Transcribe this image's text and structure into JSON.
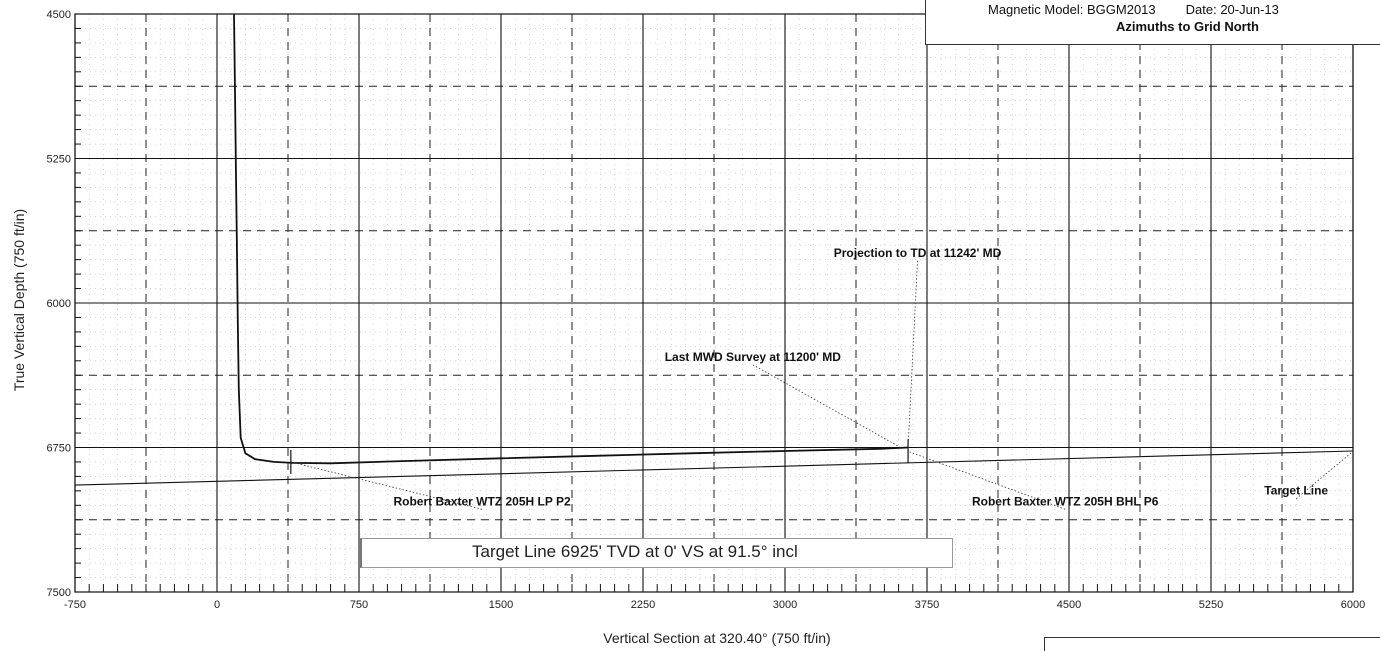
{
  "header": {
    "magnetic_model": "Magnetic Model:  BGGM2013",
    "date": "Date:  20-Jun-13",
    "azimuths": "Azimuths to Grid North"
  },
  "legend_box": {
    "text": "Target Line 6925' TVD at 0' VS at 91.5° incl"
  },
  "chart_data": {
    "type": "line",
    "xlabel": "Vertical Section at 320.40° (750 ft/in)",
    "ylabel": "True Vertical Depth (750 ft/in)",
    "xlim": [
      -750,
      6000
    ],
    "ylim": [
      7500,
      4500
    ],
    "y_inverted": true,
    "grid": true,
    "x_ticks": [
      -750,
      0,
      750,
      1500,
      2250,
      3000,
      3750,
      4500,
      5250,
      6000
    ],
    "y_ticks": [
      4500,
      5250,
      6000,
      6750,
      7500
    ],
    "x_tick_labels": [
      "-750",
      "0",
      "750",
      "1500",
      "2250",
      "3000",
      "3750",
      "4500",
      "5250",
      "6000"
    ],
    "y_tick_labels": [
      "4500",
      "5250",
      "6000",
      "6750",
      "7500"
    ],
    "series": [
      {
        "role": "wellbore",
        "color": "#111111",
        "x": [
          90,
          95,
          100,
          105,
          110,
          115,
          125,
          150,
          200,
          300,
          400,
          600,
          1000,
          1500,
          2000,
          2500,
          3000,
          3500,
          3650
        ],
        "y": [
          4500,
          4900,
          5300,
          5700,
          6100,
          6450,
          6700,
          6780,
          6810,
          6825,
          6830,
          6832,
          6820,
          6806,
          6793,
          6780,
          6768,
          6757,
          6750
        ]
      },
      {
        "role": "target-line",
        "color": "#111111",
        "x": [
          -750,
          6000
        ],
        "y": [
          6945,
          6768
        ]
      },
      {
        "role": "horizontal-reference",
        "color": "#111111",
        "x": [
          -750,
          6000
        ],
        "y": [
          6750,
          6750
        ]
      }
    ],
    "markers": [
      {
        "x": 390,
        "y": 6825
      },
      {
        "x": 3650,
        "y": 6770
      }
    ],
    "annotations": [
      {
        "text": "Projection to TD at 11242' MD",
        "x": 3700,
        "y": 5760,
        "ax": 3650,
        "ay": 6750
      },
      {
        "text": "Last MWD Survey at 11200' MD",
        "x": 2830,
        "y": 6300,
        "ax": 3620,
        "ay": 6755
      },
      {
        "text": "Robert Baxter WTZ 205H LP P2",
        "x": 1400,
        "y": 7050,
        "ax": 390,
        "ay": 6825
      },
      {
        "text": "Robert Baxter WTZ 205H BHL P6",
        "x": 4480,
        "y": 7050,
        "ax": 3650,
        "ay": 6770
      },
      {
        "text": "Target Line",
        "x": 5700,
        "y": 6995,
        "ax": 6000,
        "ay": 6770
      }
    ]
  }
}
